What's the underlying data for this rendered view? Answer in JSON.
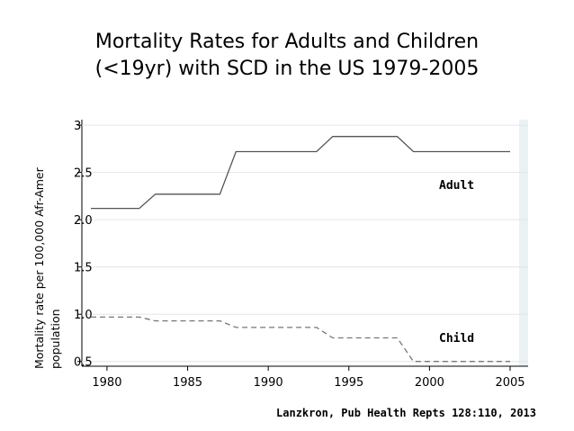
{
  "chart_data": {
    "type": "line",
    "title_line1": "Mortality Rates for Adults and Children",
    "title_line2": "(<19yr) with SCD in the US 1979-2005",
    "ylabel_line1": "Mortality rate per 100,000 Afr-Amer",
    "ylabel_line2": "population",
    "xlim": [
      1978,
      2006
    ],
    "ylim": [
      0.45,
      3.02
    ],
    "x_ticks": [
      1980,
      1985,
      1990,
      1995,
      2000,
      2005
    ],
    "y_ticks": [
      {
        "value": 0.5,
        "label": "0.5"
      },
      {
        "value": 1.0,
        "label": "1.0"
      },
      {
        "value": 1.5,
        "label": "1.5"
      },
      {
        "value": 2.0,
        "label": "2.0"
      },
      {
        "value": 2.5,
        "label": "2.5"
      },
      {
        "value": 3.0,
        "label": "3"
      }
    ],
    "grid": true,
    "series": [
      {
        "name": "Adult",
        "style": "solid",
        "color": "#555555",
        "points": [
          [
            1979,
            2.12
          ],
          [
            1982,
            2.12
          ],
          [
            1983,
            2.27
          ],
          [
            1987,
            2.27
          ],
          [
            1988,
            2.72
          ],
          [
            1993,
            2.72
          ],
          [
            1994,
            2.88
          ],
          [
            1998,
            2.88
          ],
          [
            1999,
            2.72
          ],
          [
            2005,
            2.72
          ]
        ]
      },
      {
        "name": "Child",
        "style": "dashed",
        "color": "#777777",
        "points": [
          [
            1979,
            0.97
          ],
          [
            1982,
            0.97
          ],
          [
            1983,
            0.93
          ],
          [
            1987,
            0.93
          ],
          [
            1988,
            0.86
          ],
          [
            1993,
            0.86
          ],
          [
            1994,
            0.75
          ],
          [
            1998,
            0.75
          ],
          [
            1999,
            0.5
          ],
          [
            2005,
            0.5
          ]
        ]
      }
    ]
  },
  "source": "Lanzkron, Pub Health Repts 128:110, 2013"
}
